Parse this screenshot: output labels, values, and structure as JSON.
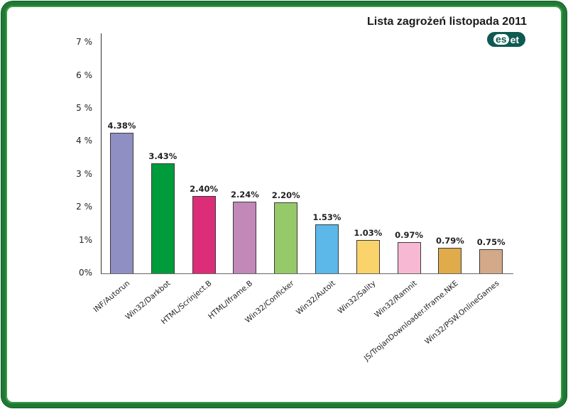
{
  "header": {
    "title": "Lista zagrożeń listopada 2011",
    "logo_left": "es",
    "logo_right": "et",
    "logo_label": "ESET"
  },
  "colors": {
    "frame_border": "#1f7a34",
    "logo_bg": "#0e5a52"
  },
  "axis": {
    "y_ticks": [
      "0%",
      "1%",
      "2 %",
      "3 %",
      "4 %",
      "5 %",
      "6 %",
      "7 %"
    ]
  },
  "chart_data": {
    "type": "bar",
    "title": "Lista zagrożeń listopada 2011",
    "xlabel": "",
    "ylabel": "",
    "ylim": [
      0,
      7
    ],
    "grid": false,
    "legend": null,
    "y_tick_labels": [
      "0%",
      "1%",
      "2 %",
      "3 %",
      "4 %",
      "5 %",
      "6 %",
      "7 %"
    ],
    "categories": [
      "INF/Autorun",
      "Win32/Darkbot",
      "HTML/Scrinject.B",
      "HTML/Iframe.B",
      "Win32/Conficker",
      "Win32/Autoit",
      "Win32/Sality",
      "Win32/Ramnit",
      "JS/TrojanDownloader.Iframe.NKE",
      "Win32/PSW.OnlineGames"
    ],
    "values": [
      4.38,
      3.43,
      2.4,
      2.24,
      2.2,
      1.53,
      1.03,
      0.97,
      0.79,
      0.75
    ],
    "value_labels": [
      "4.38%",
      "3.43%",
      "2.40%",
      "2.24%",
      "2.20%",
      "1.53%",
      "1.03%",
      "0.97%",
      "0.79%",
      "0.75%"
    ],
    "bar_colors": [
      "#8f8fc3",
      "#009b3a",
      "#db2d78",
      "#c188b8",
      "#96c96a",
      "#5bb8e8",
      "#fad36b",
      "#f6b8d2",
      "#e0ab4a",
      "#d3a98a"
    ]
  }
}
